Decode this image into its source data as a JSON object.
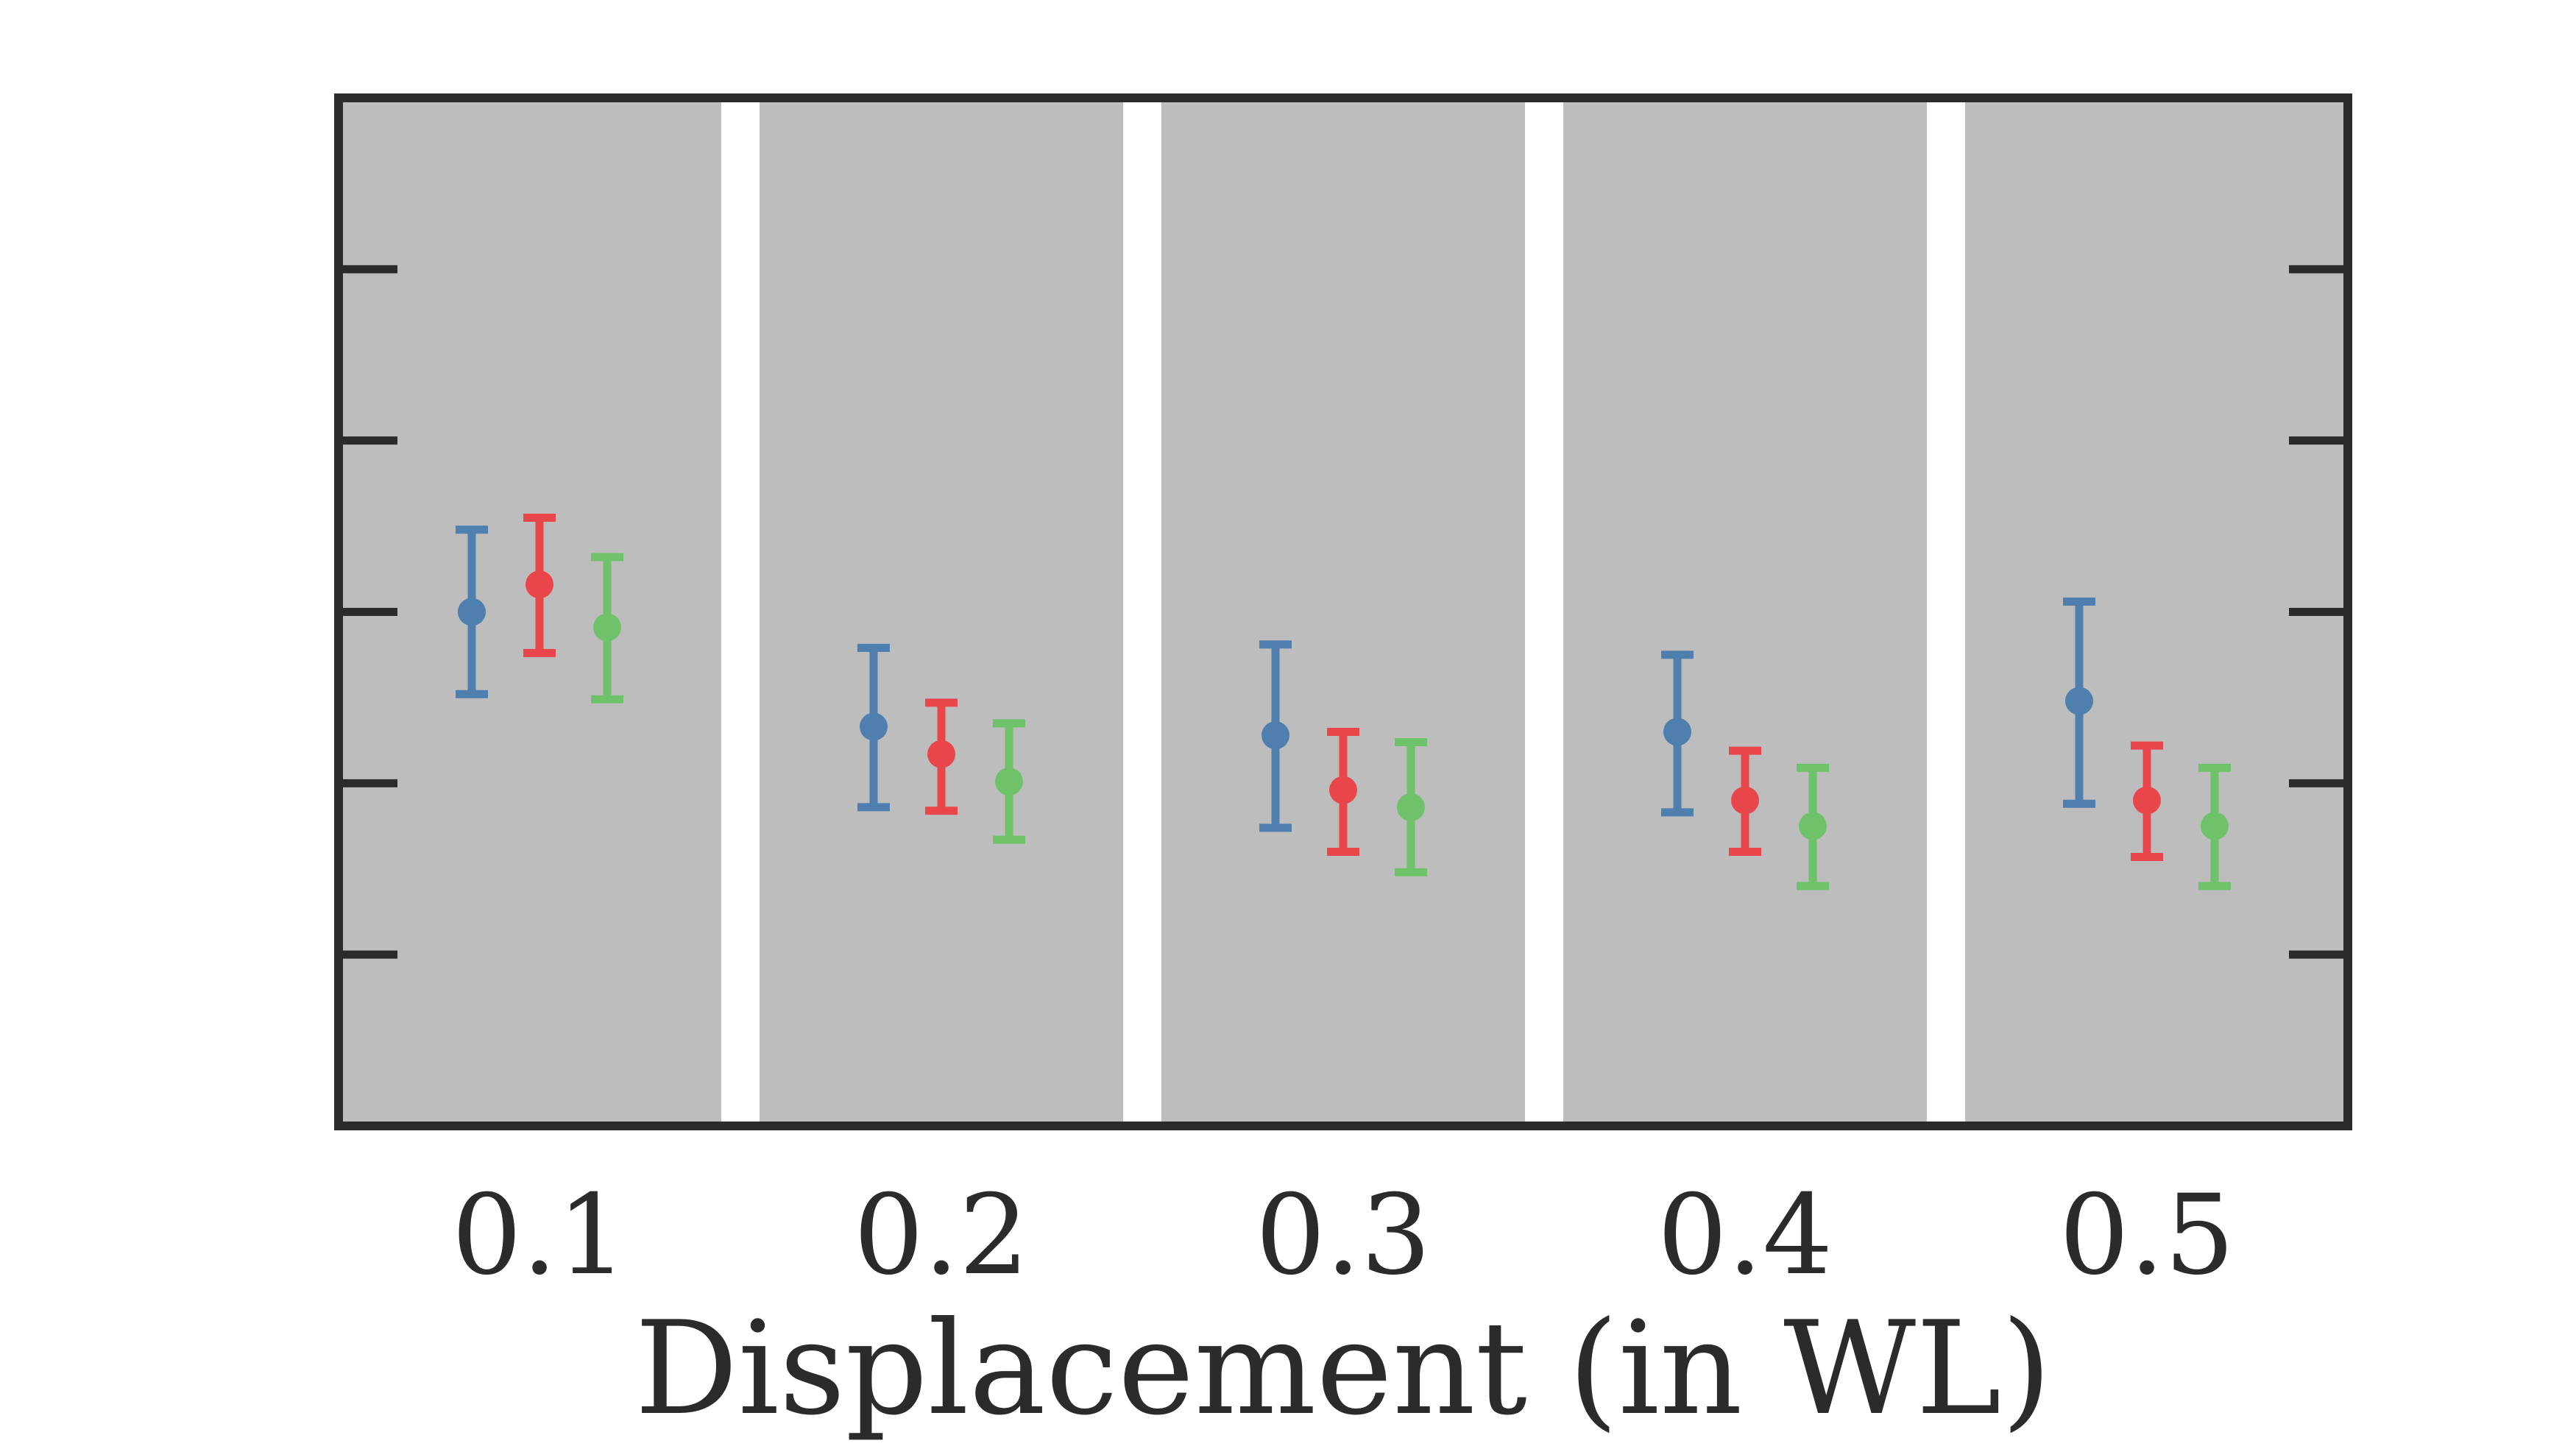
{
  "chart_data": {
    "type": "scatter",
    "subtype": "errorbar",
    "title": "",
    "xlabel": "Displacement (in WL)",
    "ylabel": "",
    "categories": [
      "0.1",
      "0.2",
      "0.3",
      "0.4",
      "0.5"
    ],
    "ylim": [
      0,
      6
    ],
    "yticks": [
      1,
      2,
      3,
      4,
      5
    ],
    "ytick_labels_visible": false,
    "grid": false,
    "legend": "none",
    "background_bands": true,
    "band_color": "#bdbdbd",
    "frame_color": "#2b2b2b",
    "series": [
      {
        "color": "#4e7fae",
        "values": [
          3.0,
          2.33,
          2.28,
          2.3,
          2.48
        ],
        "err_low": [
          0.48,
          0.47,
          0.54,
          0.47,
          0.6
        ],
        "err_high": [
          0.48,
          0.46,
          0.53,
          0.45,
          0.58
        ]
      },
      {
        "color": "#e8464b",
        "values": [
          3.16,
          2.17,
          1.96,
          1.9,
          1.9
        ],
        "err_low": [
          0.4,
          0.33,
          0.36,
          0.3,
          0.33
        ],
        "err_high": [
          0.39,
          0.3,
          0.34,
          0.29,
          0.32
        ]
      },
      {
        "color": "#6ec26a",
        "values": [
          2.91,
          2.01,
          1.86,
          1.75,
          1.75
        ],
        "err_low": [
          0.42,
          0.34,
          0.38,
          0.35,
          0.35
        ],
        "err_high": [
          0.41,
          0.34,
          0.38,
          0.34,
          0.34
        ]
      }
    ]
  }
}
